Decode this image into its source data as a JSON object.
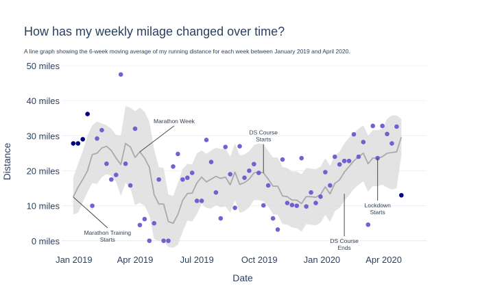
{
  "chart_data": {
    "type": "scatter",
    "title": "How has my weekly milage changed over time?",
    "subtitle": "A line graph showing the 6-week moving average of my running distance for each week between January 2019 and April 2020.",
    "xlabel": "Date",
    "ylabel": "Distance",
    "xlim": [
      "2018-12-14",
      "2020-06-03"
    ],
    "ylim": [
      -2,
      50
    ],
    "x_ticks": [
      {
        "date": "2019-01-01",
        "label": "Jan 2019"
      },
      {
        "date": "2019-04-01",
        "label": "Apr 2019"
      },
      {
        "date": "2019-07-01",
        "label": "Jul 2019"
      },
      {
        "date": "2019-10-01",
        "label": "Oct 2019"
      },
      {
        "date": "2020-01-01",
        "label": "Jan 2020"
      },
      {
        "date": "2020-04-01",
        "label": "Apr 2020"
      }
    ],
    "y_ticks": [
      {
        "value": 0,
        "label": "0 miles"
      },
      {
        "value": 10,
        "label": "10 miles"
      },
      {
        "value": 20,
        "label": "20 miles"
      },
      {
        "value": 30,
        "label": "30 miles"
      },
      {
        "value": 40,
        "label": "40 miles"
      },
      {
        "value": 50,
        "label": "50 miles"
      }
    ],
    "grid": true,
    "colors": {
      "point_early": "#000080",
      "point_averaged": "#6a5acd",
      "moving_average": "#a9a9a9",
      "band": "#d9d9d9",
      "annotation": "#333f50",
      "title": "#2a3f5f"
    },
    "weekly_distance": [
      {
        "date": "2018-12-31",
        "value": 27.8
      },
      {
        "date": "2019-01-07",
        "value": 27.8
      },
      {
        "date": "2019-01-14",
        "value": 29
      },
      {
        "date": "2019-01-21",
        "value": 36.2
      },
      {
        "date": "2019-01-28",
        "value": 10
      },
      {
        "date": "2019-02-04",
        "value": 29.2
      },
      {
        "date": "2019-02-11",
        "value": 31.6
      },
      {
        "date": "2019-02-18",
        "value": 22
      },
      {
        "date": "2019-02-25",
        "value": 17.5
      },
      {
        "date": "2019-03-04",
        "value": 18.8
      },
      {
        "date": "2019-03-11",
        "value": 47.5
      },
      {
        "date": "2019-03-18",
        "value": 22
      },
      {
        "date": "2019-03-25",
        "value": 15.8
      },
      {
        "date": "2019-04-01",
        "value": 32
      },
      {
        "date": "2019-04-08",
        "value": 4.5
      },
      {
        "date": "2019-04-15",
        "value": 6.2
      },
      {
        "date": "2019-04-22",
        "value": 0
      },
      {
        "date": "2019-04-29",
        "value": 5
      },
      {
        "date": "2019-05-06",
        "value": 17.5
      },
      {
        "date": "2019-05-13",
        "value": 0
      },
      {
        "date": "2019-05-20",
        "value": 0
      },
      {
        "date": "2019-05-27",
        "value": 21.2
      },
      {
        "date": "2019-06-03",
        "value": 24.8
      },
      {
        "date": "2019-06-10",
        "value": 17.5
      },
      {
        "date": "2019-06-17",
        "value": 18
      },
      {
        "date": "2019-06-24",
        "value": 19.4
      },
      {
        "date": "2019-07-01",
        "value": 11.4
      },
      {
        "date": "2019-07-08",
        "value": 11.4
      },
      {
        "date": "2019-07-15",
        "value": 28.8
      },
      {
        "date": "2019-07-22",
        "value": 22.5
      },
      {
        "date": "2019-07-29",
        "value": 13.8
      },
      {
        "date": "2019-08-05",
        "value": 6.4
      },
      {
        "date": "2019-08-12",
        "value": 26.8
      },
      {
        "date": "2019-08-19",
        "value": 19
      },
      {
        "date": "2019-08-26",
        "value": 9.4
      },
      {
        "date": "2019-09-02",
        "value": 27
      },
      {
        "date": "2019-09-09",
        "value": 18
      },
      {
        "date": "2019-09-16",
        "value": 20
      },
      {
        "date": "2019-09-23",
        "value": 21.9
      },
      {
        "date": "2019-09-30",
        "value": 19.4
      },
      {
        "date": "2019-10-07",
        "value": 10.1
      },
      {
        "date": "2019-10-14",
        "value": 15.8
      },
      {
        "date": "2019-10-21",
        "value": 6.4
      },
      {
        "date": "2019-10-28",
        "value": 3.2
      },
      {
        "date": "2019-11-04",
        "value": 23.2
      },
      {
        "date": "2019-11-11",
        "value": 10.8
      },
      {
        "date": "2019-11-18",
        "value": 10.2
      },
      {
        "date": "2019-11-25",
        "value": 10
      },
      {
        "date": "2019-12-02",
        "value": 23.6
      },
      {
        "date": "2019-12-09",
        "value": 9.8
      },
      {
        "date": "2019-12-16",
        "value": 13.8
      },
      {
        "date": "2019-12-23",
        "value": 10.8
      },
      {
        "date": "2019-12-30",
        "value": 12.6
      },
      {
        "date": "2020-01-06",
        "value": 19.6
      },
      {
        "date": "2020-01-13",
        "value": 15.8
      },
      {
        "date": "2020-01-20",
        "value": 24
      },
      {
        "date": "2020-01-27",
        "value": 21.8
      },
      {
        "date": "2020-02-03",
        "value": 22.8
      },
      {
        "date": "2020-02-10",
        "value": 22.8
      },
      {
        "date": "2020-02-17",
        "value": 30.4
      },
      {
        "date": "2020-02-24",
        "value": 24
      },
      {
        "date": "2020-03-02",
        "value": 28.2
      },
      {
        "date": "2020-03-09",
        "value": 4.6
      },
      {
        "date": "2020-03-16",
        "value": 32.8
      },
      {
        "date": "2020-03-23",
        "value": 23.6
      },
      {
        "date": "2020-03-30",
        "value": 32.8
      },
      {
        "date": "2020-04-06",
        "value": 30.5
      },
      {
        "date": "2020-04-13",
        "value": 27.8
      },
      {
        "date": "2020-04-20",
        "value": 32.6
      },
      {
        "date": "2020-04-27",
        "value": 13
      }
    ],
    "moving_average": [
      {
        "date": "2018-12-31",
        "value": 12.5
      },
      {
        "date": "2019-01-07",
        "value": 15.3
      },
      {
        "date": "2019-01-14",
        "value": 17.5
      },
      {
        "date": "2019-01-21",
        "value": 20
      },
      {
        "date": "2019-01-28",
        "value": 24.6
      },
      {
        "date": "2019-02-04",
        "value": 25
      },
      {
        "date": "2019-02-11",
        "value": 26.5
      },
      {
        "date": "2019-02-18",
        "value": 27
      },
      {
        "date": "2019-02-25",
        "value": 25.8
      },
      {
        "date": "2019-03-04",
        "value": 23.6
      },
      {
        "date": "2019-03-11",
        "value": 21.8
      },
      {
        "date": "2019-03-18",
        "value": 27.8
      },
      {
        "date": "2019-03-25",
        "value": 26.8
      },
      {
        "date": "2019-04-01",
        "value": 23.8
      },
      {
        "date": "2019-04-08",
        "value": 25.4
      },
      {
        "date": "2019-04-15",
        "value": 23.6
      },
      {
        "date": "2019-04-22",
        "value": 21
      },
      {
        "date": "2019-04-29",
        "value": 13.2
      },
      {
        "date": "2019-05-06",
        "value": 10.5
      },
      {
        "date": "2019-05-13",
        "value": 10.5
      },
      {
        "date": "2019-05-20",
        "value": 5.5
      },
      {
        "date": "2019-05-27",
        "value": 5
      },
      {
        "date": "2019-06-03",
        "value": 7.5
      },
      {
        "date": "2019-06-10",
        "value": 11.5
      },
      {
        "date": "2019-06-17",
        "value": 13.5
      },
      {
        "date": "2019-06-24",
        "value": 13.6
      },
      {
        "date": "2019-07-01",
        "value": 16.5
      },
      {
        "date": "2019-07-08",
        "value": 18.2
      },
      {
        "date": "2019-07-15",
        "value": 16.8
      },
      {
        "date": "2019-07-22",
        "value": 17.6
      },
      {
        "date": "2019-07-29",
        "value": 18.4
      },
      {
        "date": "2019-08-05",
        "value": 17.8
      },
      {
        "date": "2019-08-12",
        "value": 18.2
      },
      {
        "date": "2019-08-19",
        "value": 16
      },
      {
        "date": "2019-08-26",
        "value": 19.6
      },
      {
        "date": "2019-09-02",
        "value": 16.1
      },
      {
        "date": "2019-09-09",
        "value": 16.6
      },
      {
        "date": "2019-09-16",
        "value": 17.6
      },
      {
        "date": "2019-09-23",
        "value": 19.4
      },
      {
        "date": "2019-09-30",
        "value": 19.6
      },
      {
        "date": "2019-10-07",
        "value": 19.4
      },
      {
        "date": "2019-10-14",
        "value": 17.6
      },
      {
        "date": "2019-10-21",
        "value": 15.6
      },
      {
        "date": "2019-10-28",
        "value": 15.6
      },
      {
        "date": "2019-11-04",
        "value": 12.8
      },
      {
        "date": "2019-11-11",
        "value": 12.6
      },
      {
        "date": "2019-11-18",
        "value": 11.6
      },
      {
        "date": "2019-11-25",
        "value": 11.6
      },
      {
        "date": "2019-12-02",
        "value": 10.6
      },
      {
        "date": "2019-12-09",
        "value": 12.6
      },
      {
        "date": "2019-12-16",
        "value": 12.6
      },
      {
        "date": "2019-12-23",
        "value": 12.4
      },
      {
        "date": "2019-12-30",
        "value": 13.2
      },
      {
        "date": "2020-01-06",
        "value": 15.4
      },
      {
        "date": "2020-01-13",
        "value": 13.4
      },
      {
        "date": "2020-01-20",
        "value": 16.4
      },
      {
        "date": "2020-01-27",
        "value": 17.4
      },
      {
        "date": "2020-02-03",
        "value": 19.6
      },
      {
        "date": "2020-02-10",
        "value": 21.2
      },
      {
        "date": "2020-02-17",
        "value": 22.8
      },
      {
        "date": "2020-02-24",
        "value": 24
      },
      {
        "date": "2020-03-02",
        "value": 25
      },
      {
        "date": "2020-03-09",
        "value": 22
      },
      {
        "date": "2020-03-16",
        "value": 23.6
      },
      {
        "date": "2020-03-23",
        "value": 23.6
      },
      {
        "date": "2020-03-30",
        "value": 24
      },
      {
        "date": "2020-04-06",
        "value": 25
      },
      {
        "date": "2020-04-13",
        "value": 25.2
      },
      {
        "date": "2020-04-20",
        "value": 25.4
      },
      {
        "date": "2020-04-27",
        "value": 29.6
      }
    ],
    "band": [
      {
        "date": "2018-12-31",
        "upper": 18,
        "lower": 7.5
      },
      {
        "date": "2019-01-07",
        "upper": 22,
        "lower": 8
      },
      {
        "date": "2019-01-14",
        "upper": 25.5,
        "lower": 11
      },
      {
        "date": "2019-01-21",
        "upper": 30,
        "lower": 14
      },
      {
        "date": "2019-01-28",
        "upper": 33,
        "lower": 16.5
      },
      {
        "date": "2019-02-04",
        "upper": 34,
        "lower": 16.2
      },
      {
        "date": "2019-02-11",
        "upper": 33.5,
        "lower": 18.2
      },
      {
        "date": "2019-02-18",
        "upper": 33,
        "lower": 19
      },
      {
        "date": "2019-02-25",
        "upper": 32,
        "lower": 18.6
      },
      {
        "date": "2019-03-04",
        "upper": 30.2,
        "lower": 16.8
      },
      {
        "date": "2019-03-11",
        "upper": 30,
        "lower": 12.8
      },
      {
        "date": "2019-03-18",
        "upper": 38.5,
        "lower": 16.5
      },
      {
        "date": "2019-03-25",
        "upper": 38,
        "lower": 15
      },
      {
        "date": "2019-04-01",
        "upper": 37,
        "lower": 10.2
      },
      {
        "date": "2019-04-08",
        "upper": 38,
        "lower": 10.8
      },
      {
        "date": "2019-04-15",
        "upper": 36.8,
        "lower": 10
      },
      {
        "date": "2019-04-22",
        "upper": 34,
        "lower": 7.2
      },
      {
        "date": "2019-04-29",
        "upper": 26.2,
        "lower": 0.5
      },
      {
        "date": "2019-05-06",
        "upper": 21,
        "lower": 0
      },
      {
        "date": "2019-05-13",
        "upper": 20.8,
        "lower": 0
      },
      {
        "date": "2019-05-20",
        "upper": 13.2,
        "lower": -1.8
      },
      {
        "date": "2019-05-27",
        "upper": 12.8,
        "lower": -2
      },
      {
        "date": "2019-06-03",
        "upper": 16.5,
        "lower": -1.2
      },
      {
        "date": "2019-06-10",
        "upper": 20.5,
        "lower": 2.6
      },
      {
        "date": "2019-06-17",
        "upper": 22,
        "lower": 5.8
      },
      {
        "date": "2019-06-24",
        "upper": 21.8,
        "lower": 5.5
      },
      {
        "date": "2019-07-01",
        "upper": 25,
        "lower": 7.6
      },
      {
        "date": "2019-07-08",
        "upper": 25.8,
        "lower": 10.6
      },
      {
        "date": "2019-07-15",
        "upper": 24.8,
        "lower": 9.4
      },
      {
        "date": "2019-07-22",
        "upper": 25.8,
        "lower": 9.2
      },
      {
        "date": "2019-07-29",
        "upper": 26.6,
        "lower": 10.2
      },
      {
        "date": "2019-08-05",
        "upper": 26.2,
        "lower": 9.6
      },
      {
        "date": "2019-08-12",
        "upper": 26.4,
        "lower": 9.8
      },
      {
        "date": "2019-08-19",
        "upper": 24,
        "lower": 8
      },
      {
        "date": "2019-08-26",
        "upper": 27.8,
        "lower": 11.6
      },
      {
        "date": "2019-09-02",
        "upper": 24.4,
        "lower": 8
      },
      {
        "date": "2019-09-09",
        "upper": 24.6,
        "lower": 8.4
      },
      {
        "date": "2019-09-16",
        "upper": 25.6,
        "lower": 9.6
      },
      {
        "date": "2019-09-23",
        "upper": 27.4,
        "lower": 11.6
      },
      {
        "date": "2019-09-30",
        "upper": 27.8,
        "lower": 11.6
      },
      {
        "date": "2019-10-07",
        "upper": 27.6,
        "lower": 11.2
      },
      {
        "date": "2019-10-14",
        "upper": 25.6,
        "lower": 9.8
      },
      {
        "date": "2019-10-21",
        "upper": 23.8,
        "lower": 7.6
      },
      {
        "date": "2019-10-28",
        "upper": 23.8,
        "lower": 7.4
      },
      {
        "date": "2019-11-04",
        "upper": 21,
        "lower": 4.8
      },
      {
        "date": "2019-11-11",
        "upper": 20.8,
        "lower": 4.6
      },
      {
        "date": "2019-11-18",
        "upper": 19.8,
        "lower": 3.8
      },
      {
        "date": "2019-11-25",
        "upper": 19.8,
        "lower": 3.6
      },
      {
        "date": "2019-12-02",
        "upper": 19,
        "lower": 2.6
      },
      {
        "date": "2019-12-09",
        "upper": 20.8,
        "lower": 4.8
      },
      {
        "date": "2019-12-16",
        "upper": 20.6,
        "lower": 4.6
      },
      {
        "date": "2019-12-23",
        "upper": 20.4,
        "lower": 4.4
      },
      {
        "date": "2019-12-30",
        "upper": 21.2,
        "lower": 5.2
      },
      {
        "date": "2020-01-06",
        "upper": 23.6,
        "lower": 7.4
      },
      {
        "date": "2020-01-13",
        "upper": 21.4,
        "lower": 5.4
      },
      {
        "date": "2020-01-20",
        "upper": 24.4,
        "lower": 8.4
      },
      {
        "date": "2020-01-27",
        "upper": 25.4,
        "lower": 9.4
      },
      {
        "date": "2020-02-03",
        "upper": 27.8,
        "lower": 11.4
      },
      {
        "date": "2020-02-10",
        "upper": 29.4,
        "lower": 13
      },
      {
        "date": "2020-02-17",
        "upper": 30.8,
        "lower": 14.8
      },
      {
        "date": "2020-02-24",
        "upper": 32,
        "lower": 16
      },
      {
        "date": "2020-03-02",
        "upper": 33,
        "lower": 17
      },
      {
        "date": "2020-03-09",
        "upper": 30,
        "lower": 14
      },
      {
        "date": "2020-03-16",
        "upper": 31.6,
        "lower": 15.6
      },
      {
        "date": "2020-03-23",
        "upper": 31.6,
        "lower": 15.6
      },
      {
        "date": "2020-03-30",
        "upper": 32,
        "lower": 16
      },
      {
        "date": "2020-04-06",
        "upper": 34.8,
        "lower": 15.2
      },
      {
        "date": "2020-04-13",
        "upper": 35.8,
        "lower": 14.6
      },
      {
        "date": "2020-04-20",
        "upper": 35.8,
        "lower": 15
      },
      {
        "date": "2020-04-27",
        "upper": 34.8,
        "lower": 24.4
      }
    ],
    "annotations": [
      {
        "text": [
          "Marathon Training",
          "Starts"
        ],
        "date": "2018-12-31",
        "value": 12.5,
        "anchor": "below-right"
      },
      {
        "text": [
          "Marathon Week"
        ],
        "date": "2019-04-08",
        "value": 25.4,
        "anchor": "above-right"
      },
      {
        "text": [
          "DS Course",
          "Starts"
        ],
        "date": "2019-10-07",
        "value": 19.4,
        "anchor": "above"
      },
      {
        "text": [
          "DS Course",
          "Ends"
        ],
        "date": "2020-02-03",
        "value": 13.4,
        "anchor": "below"
      },
      {
        "text": [
          "Lockdown",
          "Starts"
        ],
        "date": "2020-03-23",
        "value": 23.6,
        "anchor": "below"
      }
    ]
  }
}
